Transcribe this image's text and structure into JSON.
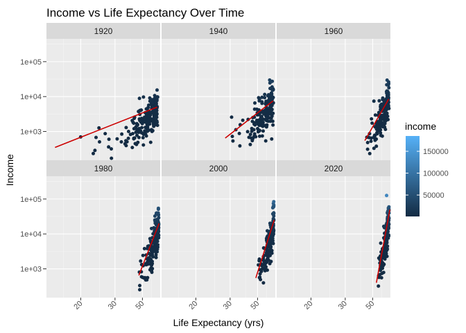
{
  "chart_data": {
    "type": "scatter",
    "title": "Income vs Life Expectancy Over Time",
    "xlabel": "Life Expectancy (yrs)",
    "ylabel": "Income",
    "x_scale": "reciprocal",
    "y_scale": "log10",
    "xlim": [
      15,
      88
    ],
    "ylim": [
      150,
      450000
    ],
    "x_ticks": [
      20,
      30,
      50
    ],
    "y_ticks": [
      {
        "value": 1000,
        "label": "1e+03"
      },
      {
        "value": 10000,
        "label": "1e+04"
      },
      {
        "value": 100000,
        "label": "1e+05"
      }
    ],
    "facets": [
      {
        "label": "1920",
        "fit": {
          "x0": 16,
          "y0": 350,
          "x1": 78,
          "y1": 5000
        }
      },
      {
        "label": "1940",
        "fit": {
          "x0": 28,
          "y0": 650,
          "x1": 80,
          "y1": 7500
        }
      },
      {
        "label": "1960",
        "fit": {
          "x0": 42,
          "y0": 550,
          "x1": 82,
          "y1": 8500
        }
      },
      {
        "label": "1980",
        "fit": {
          "x0": 46,
          "y0": 650,
          "x1": 84,
          "y1": 20000
        }
      },
      {
        "label": "2000",
        "fit": {
          "x0": 48,
          "y0": 550,
          "x1": 84,
          "y1": 25000
        }
      },
      {
        "label": "2020",
        "fit": {
          "x0": 55,
          "y0": 400,
          "x1": 86,
          "y1": 50000
        }
      }
    ],
    "legend": {
      "title": "income",
      "position": "right",
      "ticks": [
        50000,
        100000,
        150000
      ],
      "tick_labels": [
        "50000",
        "100000",
        "150000"
      ],
      "range": [
        1000,
        185000
      ],
      "color_low": "#132B43",
      "color_high": "#56B1F7"
    },
    "fit_color": "#CC0000",
    "panel_background": "#EBEBEB",
    "strip_background": "#D9D9D9",
    "grid": true
  }
}
